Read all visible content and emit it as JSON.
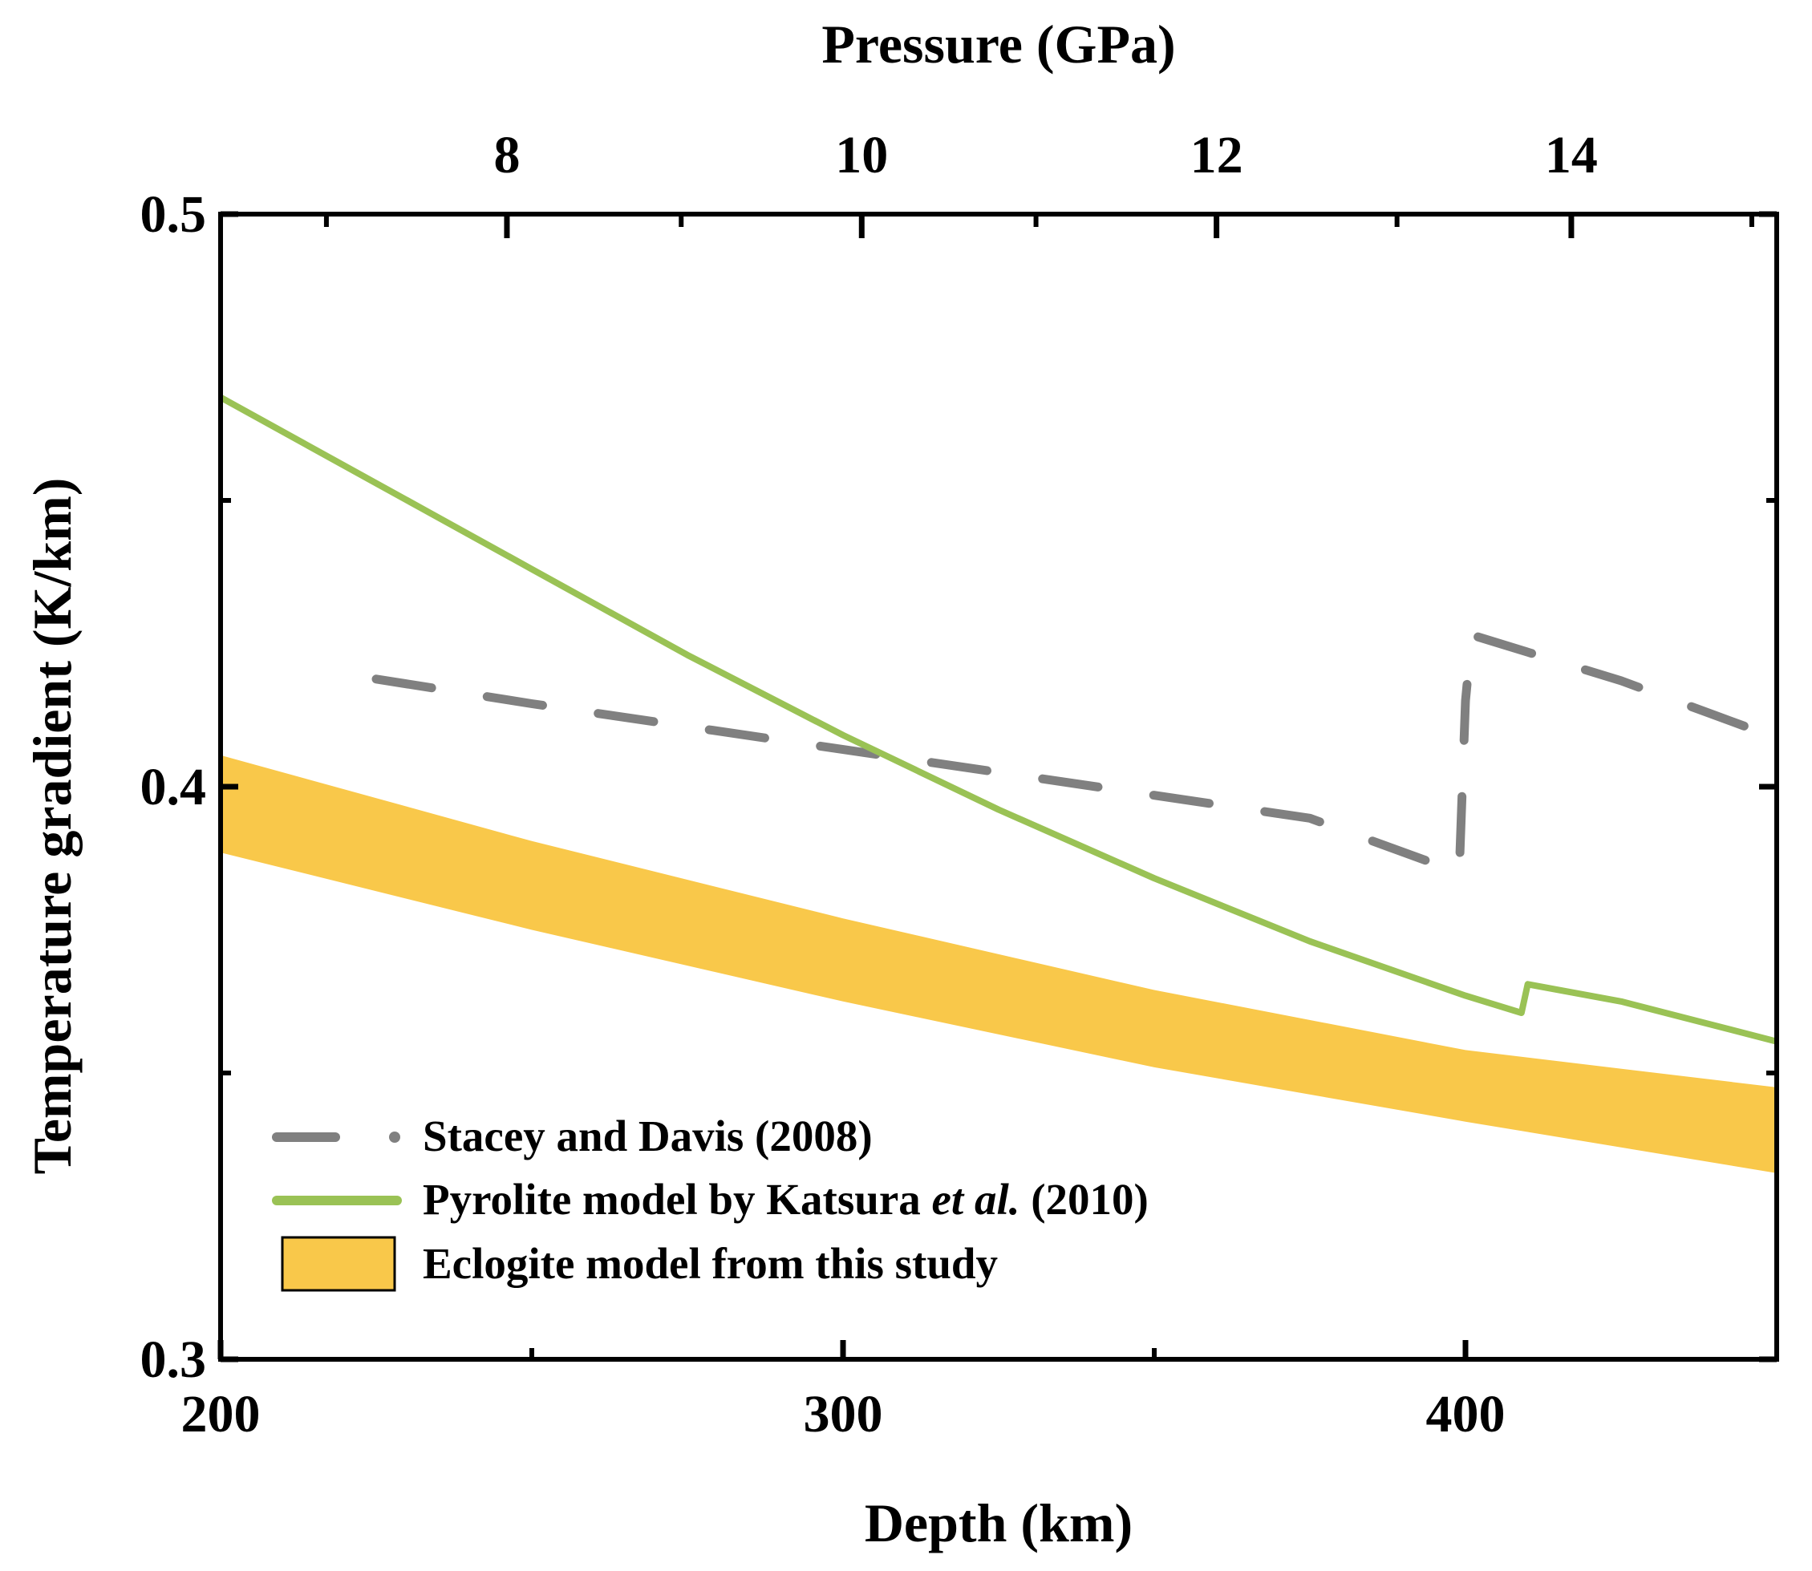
{
  "chart_data": {
    "type": "line",
    "title": "",
    "xlabel": "Depth (km)",
    "ylabel": "Temperature gradient (K/km)",
    "x2label": "Pressure (GPa)",
    "xlim": [
      200,
      450
    ],
    "ylim": [
      0.3,
      0.5
    ],
    "x_ticks": [
      200,
      300,
      400
    ],
    "x_tick_labels": [
      "200",
      "300",
      "400"
    ],
    "y_ticks": [
      0.3,
      0.4,
      0.5
    ],
    "y_tick_labels": [
      "0.3",
      "0.4",
      "0.5"
    ],
    "top_axis": {
      "ticks": [
        {
          "label": "8",
          "depth": 246
        },
        {
          "label": "10",
          "depth": 303
        },
        {
          "label": "12",
          "depth": 360
        },
        {
          "label": "14",
          "depth": 417
        }
      ],
      "minor_ticks": [
        217,
        274,
        331,
        389,
        446
      ]
    },
    "series": [
      {
        "name": "Stacey and Davis (2008)",
        "style": "dash",
        "color": "#808080",
        "x": [
          225,
          250,
          275,
          300,
          325,
          350,
          375,
          399,
          400,
          401,
          425,
          450
        ],
        "y": [
          0.4188,
          0.4145,
          0.4105,
          0.4065,
          0.4025,
          0.3985,
          0.3945,
          0.385,
          0.415,
          0.4265,
          0.4185,
          0.4085
        ]
      },
      {
        "name": "Pyrolite model by Katsura et al. (2010)",
        "style": "solid",
        "color": "#9ac255",
        "x": [
          200,
          225,
          250,
          275,
          300,
          325,
          350,
          375,
          400,
          409,
          410,
          425,
          450
        ],
        "y": [
          0.468,
          0.453,
          0.438,
          0.423,
          0.409,
          0.396,
          0.384,
          0.373,
          0.3635,
          0.3605,
          0.3655,
          0.3625,
          0.3555
        ]
      }
    ],
    "band": {
      "name": "Eclogite model from this study",
      "color": "#f9c84a",
      "x": [
        200,
        250,
        300,
        350,
        400,
        450
      ],
      "y_upper": [
        0.4055,
        0.3905,
        0.377,
        0.3645,
        0.354,
        0.3475
      ],
      "y_lower": [
        0.3885,
        0.375,
        0.3625,
        0.351,
        0.3415,
        0.3325
      ]
    },
    "legend": {
      "position": "bottom-left",
      "entries": [
        "Stacey and Davis (2008)",
        "Pyrolite model by Katsura et al. (2010)",
        "Eclogite model from this study"
      ]
    }
  },
  "legend_text": {
    "stacey": "Stacey and Davis (2008)",
    "pyrolite_pre": "Pyrolite model by Katsura ",
    "pyrolite_italic": "et al.",
    "pyrolite_post": " (2010)",
    "eclogite": "Eclogite model from this study"
  }
}
